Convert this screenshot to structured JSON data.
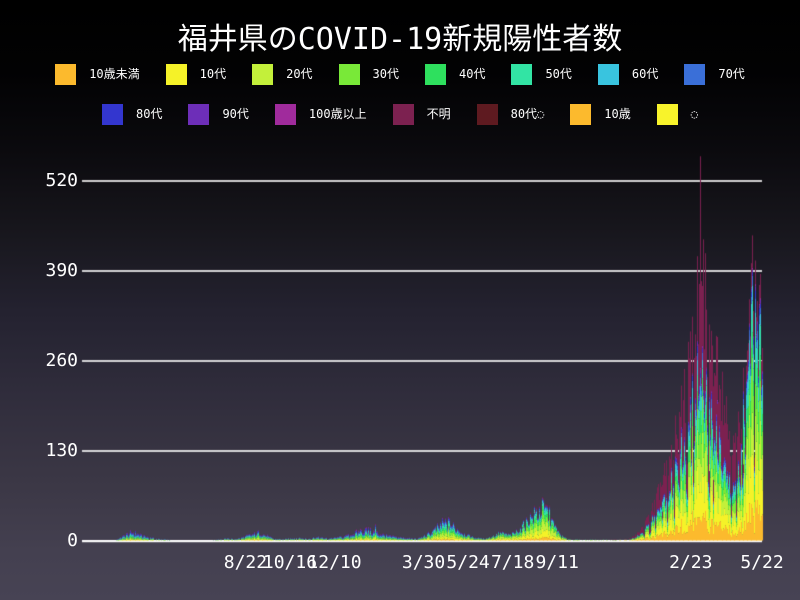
{
  "header": {
    "title": "福井県のCOVID-19新規陽性者数"
  },
  "background": {
    "top": "#000000",
    "bottom": "#474354"
  },
  "legend": {
    "rows": [
      [
        {
          "label": "10歳未満",
          "color": "#FCBA2D"
        },
        {
          "label": "10代",
          "color": "#F5F228"
        },
        {
          "label": "20代",
          "color": "#C3F03A"
        },
        {
          "label": "30代",
          "color": "#79E938"
        },
        {
          "label": "40代",
          "color": "#2EE05E"
        },
        {
          "label": "50代",
          "color": "#32E4A4"
        },
        {
          "label": "60代",
          "color": "#39C4DF"
        },
        {
          "label": "70代",
          "color": "#3A6FD8"
        }
      ],
      [
        {
          "label": "80代",
          "color": "#3336CF"
        },
        {
          "label": "90代",
          "color": "#6D2EB8"
        },
        {
          "label": "100歳以上",
          "color": "#A02B9C"
        },
        {
          "label": "不明",
          "color": "#7C2150"
        },
        {
          "label": "80代◌",
          "color": "#5E1A20"
        },
        {
          "label": "10歳",
          "color": "#FCBA2D"
        },
        {
          "label": "◌",
          "color": "#F8F32B"
        }
      ]
    ]
  },
  "chart_data": {
    "type": "area",
    "stacked": true,
    "title": "福井県のCOVID-19新規陽性者数",
    "xlabel": "",
    "ylabel": "",
    "ylim": [
      0,
      560
    ],
    "y_ticks": [
      0,
      130,
      260,
      390,
      520
    ],
    "grid": true,
    "grid_color": "#ffffff",
    "legend_position": "top",
    "day_span": 830,
    "x_ticks": [
      {
        "label": "8/22",
        "day": 192
      },
      {
        "label": "10/16",
        "day": 247
      },
      {
        "label": "12/10",
        "day": 302
      },
      {
        "label": "3/30",
        "day": 412
      },
      {
        "label": "5/24",
        "day": 467
      },
      {
        "label": "7/18",
        "day": 522
      },
      {
        "label": "9/11",
        "day": 577
      },
      {
        "label": "2/23",
        "day": 742
      },
      {
        "label": "5/22",
        "day": 830
      }
    ],
    "series": [
      {
        "name": "10歳未満",
        "color": "#FCBA2D"
      },
      {
        "name": "10代",
        "color": "#F5F228"
      },
      {
        "name": "20代",
        "color": "#C3F03A"
      },
      {
        "name": "30代",
        "color": "#79E938"
      },
      {
        "name": "40代",
        "color": "#2EE05E"
      },
      {
        "name": "50代",
        "color": "#32E4A4"
      },
      {
        "name": "60代",
        "color": "#39C4DF"
      },
      {
        "name": "70代",
        "color": "#3A6FD8"
      },
      {
        "name": "80代",
        "color": "#3336CF"
      },
      {
        "name": "90代",
        "color": "#6D2EB8"
      },
      {
        "name": "100歳以上",
        "color": "#A02B9C"
      },
      {
        "name": "不明",
        "color": "#7C2150"
      }
    ],
    "phases": [
      {
        "from": 0,
        "to": 140,
        "fractions": [
          0.04,
          0.07,
          0.12,
          0.12,
          0.1,
          0.12,
          0.12,
          0.11,
          0.1,
          0.06,
          0.02,
          0.02
        ]
      },
      {
        "from": 140,
        "to": 310,
        "fractions": [
          0.05,
          0.09,
          0.15,
          0.14,
          0.11,
          0.12,
          0.1,
          0.09,
          0.07,
          0.04,
          0.02,
          0.02
        ]
      },
      {
        "from": 310,
        "to": 408,
        "fractions": [
          0.04,
          0.08,
          0.13,
          0.12,
          0.1,
          0.11,
          0.11,
          0.1,
          0.09,
          0.06,
          0.03,
          0.03
        ]
      },
      {
        "from": 408,
        "to": 488,
        "fractions": [
          0.06,
          0.11,
          0.17,
          0.15,
          0.12,
          0.11,
          0.09,
          0.08,
          0.05,
          0.03,
          0.01,
          0.02
        ]
      },
      {
        "from": 488,
        "to": 640,
        "fractions": [
          0.08,
          0.16,
          0.22,
          0.16,
          0.12,
          0.09,
          0.06,
          0.04,
          0.02,
          0.01,
          0.01,
          0.03
        ]
      },
      {
        "from": 640,
        "to": 804,
        "fractions": [
          0.1,
          0.13,
          0.11,
          0.09,
          0.06,
          0.05,
          0.045,
          0.025,
          0.015,
          0.01,
          0.005,
          0.36
        ]
      },
      {
        "from": 804,
        "to": 831,
        "fractions": [
          0.13,
          0.17,
          0.15,
          0.13,
          0.09,
          0.08,
          0.07,
          0.03,
          0.02,
          0.01,
          0.005,
          0.105
        ]
      }
    ],
    "envelope": [
      [
        0,
        0
      ],
      [
        28,
        0
      ],
      [
        34,
        2
      ],
      [
        40,
        6
      ],
      [
        46,
        10
      ],
      [
        52,
        13
      ],
      [
        58,
        10
      ],
      [
        64,
        7
      ],
      [
        72,
        5
      ],
      [
        80,
        3
      ],
      [
        88,
        2
      ],
      [
        96,
        1
      ],
      [
        104,
        0
      ],
      [
        146,
        0
      ],
      [
        154,
        1
      ],
      [
        162,
        2
      ],
      [
        170,
        3
      ],
      [
        178,
        2
      ],
      [
        186,
        4
      ],
      [
        194,
        7
      ],
      [
        202,
        10
      ],
      [
        209,
        12
      ],
      [
        216,
        8
      ],
      [
        223,
        4
      ],
      [
        230,
        2
      ],
      [
        238,
        2
      ],
      [
        246,
        3
      ],
      [
        254,
        4
      ],
      [
        262,
        3
      ],
      [
        270,
        3
      ],
      [
        278,
        5
      ],
      [
        286,
        4
      ],
      [
        294,
        3
      ],
      [
        302,
        4
      ],
      [
        308,
        5
      ],
      [
        314,
        6
      ],
      [
        320,
        8
      ],
      [
        326,
        11
      ],
      [
        332,
        14
      ],
      [
        340,
        17
      ],
      [
        348,
        14
      ],
      [
        356,
        11
      ],
      [
        364,
        8
      ],
      [
        372,
        6
      ],
      [
        380,
        5
      ],
      [
        388,
        4
      ],
      [
        396,
        3
      ],
      [
        404,
        3
      ],
      [
        410,
        5
      ],
      [
        416,
        9
      ],
      [
        422,
        14
      ],
      [
        428,
        19
      ],
      [
        434,
        25
      ],
      [
        440,
        29
      ],
      [
        446,
        24
      ],
      [
        452,
        18
      ],
      [
        458,
        13
      ],
      [
        464,
        9
      ],
      [
        470,
        6
      ],
      [
        476,
        4
      ],
      [
        482,
        3
      ],
      [
        488,
        3
      ],
      [
        494,
        5
      ],
      [
        500,
        8
      ],
      [
        506,
        12
      ],
      [
        512,
        10
      ],
      [
        518,
        8
      ],
      [
        524,
        12
      ],
      [
        530,
        17
      ],
      [
        536,
        24
      ],
      [
        542,
        32
      ],
      [
        548,
        40
      ],
      [
        554,
        46
      ],
      [
        560,
        50
      ],
      [
        566,
        42
      ],
      [
        572,
        25
      ],
      [
        578,
        12
      ],
      [
        584,
        5
      ],
      [
        590,
        2
      ],
      [
        598,
        1
      ],
      [
        640,
        1
      ],
      [
        650,
        1
      ],
      [
        656,
        2
      ],
      [
        662,
        2
      ],
      [
        668,
        3
      ],
      [
        674,
        8
      ],
      [
        680,
        15
      ],
      [
        686,
        25
      ],
      [
        690,
        35
      ],
      [
        694,
        45
      ],
      [
        698,
        55
      ],
      [
        702,
        70
      ],
      [
        706,
        85
      ],
      [
        710,
        95
      ],
      [
        714,
        105
      ],
      [
        718,
        120
      ],
      [
        722,
        140
      ],
      [
        726,
        160
      ],
      [
        730,
        185
      ],
      [
        734,
        210
      ],
      [
        738,
        235
      ],
      [
        742,
        255
      ],
      [
        746,
        285
      ],
      [
        748,
        310
      ],
      [
        750,
        330
      ],
      [
        752,
        345
      ],
      [
        754,
        340
      ],
      [
        756,
        330
      ],
      [
        758,
        320
      ],
      [
        760,
        305
      ],
      [
        762,
        290
      ],
      [
        764,
        275
      ],
      [
        766,
        260
      ],
      [
        768,
        248
      ],
      [
        770,
        252
      ],
      [
        772,
        260
      ],
      [
        774,
        268
      ],
      [
        776,
        252
      ],
      [
        778,
        238
      ],
      [
        780,
        222
      ],
      [
        782,
        205
      ],
      [
        784,
        190
      ],
      [
        786,
        175
      ],
      [
        788,
        165
      ],
      [
        790,
        152
      ],
      [
        792,
        140
      ],
      [
        794,
        130
      ],
      [
        796,
        126
      ],
      [
        798,
        136
      ],
      [
        800,
        152
      ],
      [
        802,
        172
      ],
      [
        804,
        192
      ],
      [
        806,
        216
      ],
      [
        808,
        240
      ],
      [
        810,
        264
      ],
      [
        812,
        288
      ],
      [
        814,
        312
      ],
      [
        816,
        340
      ],
      [
        818,
        355
      ],
      [
        820,
        344
      ],
      [
        822,
        328
      ],
      [
        824,
        312
      ],
      [
        826,
        300
      ],
      [
        828,
        312
      ],
      [
        830,
        304
      ]
    ],
    "spikes": [
      {
        "day": 352,
        "value": 24
      },
      {
        "day": 754,
        "value": 555,
        "unknown": 0.55
      },
      {
        "day": 757,
        "value": 435,
        "unknown": 0.5
      },
      {
        "day": 760,
        "value": 415,
        "unknown": 0.48
      }
    ]
  }
}
